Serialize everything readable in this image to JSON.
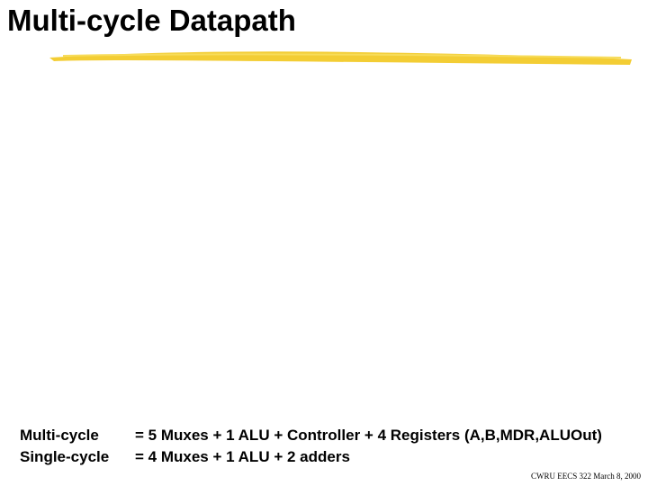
{
  "title": "Multi-cycle Datapath",
  "rows": [
    {
      "label": "Multi-cycle",
      "text": "= 5 Muxes + 1 ALU + Controller + 4 Registers (A,B,MDR,ALUOut)"
    },
    {
      "label": "Single-cycle",
      "text": "= 4 Muxes + 1 ALU + 2 adders"
    }
  ],
  "footer": "CWRU EECS 322 March 8, 2000"
}
